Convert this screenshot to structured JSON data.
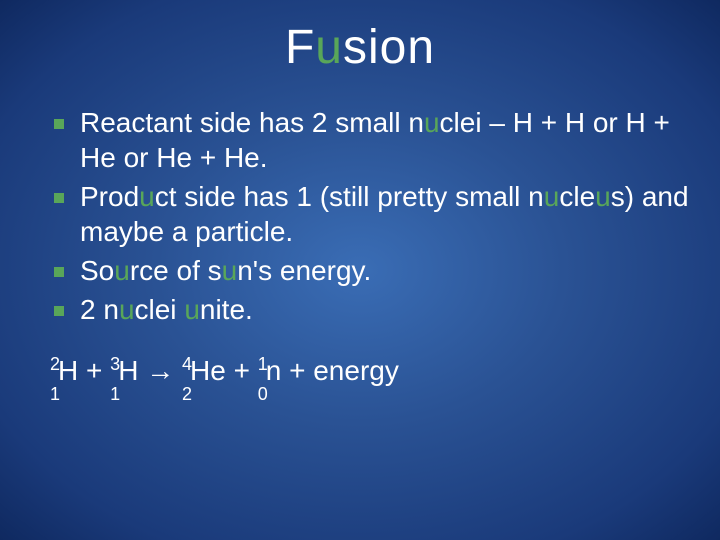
{
  "title": {
    "pre": "F",
    "accent": "u",
    "post": "sion"
  },
  "bullets": [
    {
      "segments": [
        "Reactant side has 2 small n",
        "u",
        "clei – H + H or H + He or He + He."
      ]
    },
    {
      "segments": [
        "Prod",
        "u",
        "ct side has 1 (still pretty small n",
        "u",
        "cle",
        "u",
        "s) and maybe a particle."
      ]
    },
    {
      "segments": [
        "So",
        "u",
        "rce of s",
        "u",
        "n's energy."
      ]
    },
    {
      "segments": [
        "2 n",
        "u",
        "clei ",
        "u",
        "nite."
      ]
    }
  ],
  "equation": {
    "terms": [
      {
        "type": "isotope",
        "mass": "2",
        "atomic": "1",
        "symbol": "H"
      },
      {
        "type": "op",
        "text": " + "
      },
      {
        "type": "isotope",
        "mass": "3",
        "atomic": "1",
        "symbol": "H"
      },
      {
        "type": "arrow",
        "text": " → "
      },
      {
        "type": "isotope",
        "mass": "4",
        "atomic": "2",
        "symbol": "He"
      },
      {
        "type": "op",
        "text": " + "
      },
      {
        "type": "isotope",
        "mass": "1",
        "atomic": "0",
        "symbol": "n"
      },
      {
        "type": "op",
        "text": " + energy"
      }
    ]
  },
  "colors": {
    "accent": "#59a659",
    "text": "#ffffff"
  }
}
